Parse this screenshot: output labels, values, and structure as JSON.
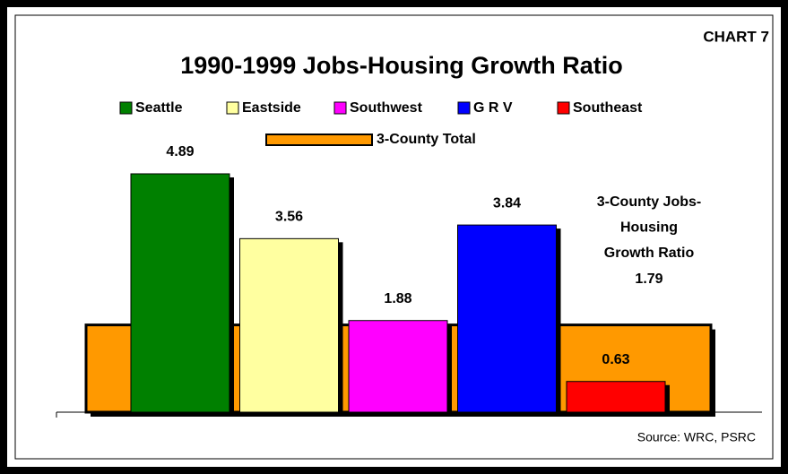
{
  "chart_data": {
    "type": "bar",
    "title": "1990-1999 Jobs-Housing Growth Ratio",
    "label": "CHART 7",
    "series": [
      {
        "name": "Seattle",
        "color": "#008000",
        "values": [
          4.89
        ]
      },
      {
        "name": "Eastside",
        "color": "#ffffa0",
        "values": [
          3.56
        ]
      },
      {
        "name": "Southwest",
        "color": "#ff00ff",
        "values": [
          1.88
        ]
      },
      {
        "name": "G R V",
        "color": "#0000ff",
        "values": [
          3.84
        ]
      },
      {
        "name": "Southeast",
        "color": "#ff0000",
        "values": [
          0.63
        ]
      },
      {
        "name": "3-County Total",
        "color": "#ff9900",
        "values": [
          1.79
        ]
      }
    ],
    "annotation_lines": [
      "3-County Jobs-",
      "Housing",
      "Growth Ratio"
    ],
    "source": "Source: WRC, PSRC",
    "ylim": [
      0,
      5
    ]
  }
}
